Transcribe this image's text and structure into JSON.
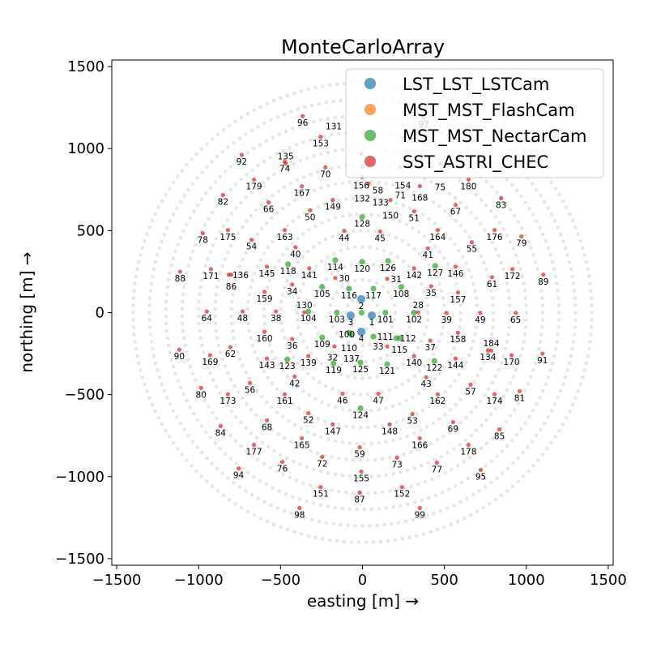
{
  "chart_data": {
    "type": "scatter",
    "title": "MonteCarloArray",
    "xlabel": "easting [m] →",
    "ylabel": "northing [m] →",
    "xlim": [
      -1530,
      1530
    ],
    "ylim": [
      -1540,
      1540
    ],
    "xticks": [
      -1500,
      -1000,
      -500,
      0,
      500,
      1000,
      1500
    ],
    "yticks": [
      -1500,
      -1000,
      -500,
      0,
      500,
      1000,
      1500
    ],
    "grid": false,
    "legend_position": "top-right",
    "series": [
      {
        "name": "LST_LST_LSTCam",
        "color": "#1f77b4",
        "points": [
          [
            "1",
            57,
            -17
          ],
          [
            "2",
            -7,
            82
          ],
          [
            "3",
            -72,
            -17
          ],
          [
            "4",
            -7,
            -117
          ]
        ]
      },
      {
        "name": "MST_MST_FlashCam",
        "color": "#ff7f0e",
        "points": []
      },
      {
        "name": "MST_MST_NectarCam",
        "color": "#2ca02c",
        "points": [
          [
            "100",
            -5,
            0
          ],
          [
            "101",
            140,
            0
          ],
          [
            "102",
            315,
            0
          ],
          [
            "103",
            -156,
            0
          ],
          [
            "104",
            -330,
            7
          ],
          [
            "105",
            -246,
            156
          ],
          [
            "117",
            67,
            146
          ],
          [
            "108",
            236,
            156
          ],
          [
            "116",
            -82,
            146
          ],
          [
            "118",
            -454,
            295
          ],
          [
            "114",
            -166,
            320
          ],
          [
            "128",
            -2,
            583
          ],
          [
            "120",
            -2,
            310
          ],
          [
            "126",
            156,
            315
          ],
          [
            "127",
            444,
            285
          ],
          [
            "109",
            -246,
            -151
          ],
          [
            "110",
            -82,
            -122
          ],
          [
            "137",
            -67,
            -136
          ],
          [
            "111",
            67,
            -146
          ],
          [
            "112",
            206,
            -156
          ],
          [
            "115",
            226,
            -156
          ],
          [
            "119",
            -176,
            -310
          ],
          [
            "125",
            -12,
            -305
          ],
          [
            "121",
            151,
            -315
          ],
          [
            "122",
            439,
            -295
          ],
          [
            "123",
            -459,
            -285
          ],
          [
            "124",
            -12,
            -583
          ]
        ]
      },
      {
        "name": "SST_ASTRI_CHEC",
        "color": "#d62728",
        "points": [
          [
            "96",
            -365,
            1198
          ],
          [
            "153",
            -255,
            1072
          ],
          [
            "92",
            -737,
            962
          ],
          [
            "74",
            -474,
            920
          ],
          [
            "135",
            -469,
            910
          ],
          [
            "70",
            -226,
            886
          ],
          [
            "179",
            -662,
            811
          ],
          [
            "167",
            -370,
            771
          ],
          [
            "82",
            -851,
            717
          ],
          [
            "149",
            -181,
            687
          ],
          [
            "66",
            -573,
            672
          ],
          [
            "50",
            -320,
            623
          ],
          [
            "78",
            -975,
            484
          ],
          [
            "175",
            -821,
            503
          ],
          [
            "163",
            -474,
            503
          ],
          [
            "44",
            -112,
            498
          ],
          [
            "54",
            -677,
            444
          ],
          [
            "40",
            -409,
            399
          ],
          [
            "145",
            -583,
            280
          ],
          [
            "141",
            -325,
            270
          ],
          [
            "88",
            -1113,
            250
          ],
          [
            "171",
            -925,
            265
          ],
          [
            "136",
            -816,
            231
          ],
          [
            "86",
            -801,
            231
          ],
          [
            "34",
            -429,
            171
          ],
          [
            "159",
            -598,
            127
          ],
          [
            "30",
            -166,
            211
          ],
          [
            "131",
            12,
            1099
          ],
          [
            "154",
            246,
            1069
          ],
          [
            "156",
            -7,
            969
          ],
          [
            "132",
            -2,
            890
          ],
          [
            "71",
            231,
            886
          ],
          [
            "75",
            474,
            910
          ],
          [
            "97",
            374,
            1188
          ],
          [
            "58",
            -2,
            826
          ],
          [
            "133",
            37,
            786
          ],
          [
            "168",
            350,
            771
          ],
          [
            "180",
            647,
            811
          ],
          [
            "150",
            171,
            687
          ],
          [
            "83",
            846,
            697
          ],
          [
            "51",
            315,
            617
          ],
          [
            "67",
            568,
            657
          ],
          [
            "45",
            107,
            494
          ],
          [
            "164",
            459,
            503
          ],
          [
            "176",
            806,
            503
          ],
          [
            "79",
            970,
            464
          ],
          [
            "55",
            667,
            429
          ],
          [
            "41",
            399,
            392
          ],
          [
            "142",
            315,
            270
          ],
          [
            "146",
            568,
            280
          ],
          [
            "172",
            915,
            265
          ],
          [
            "89",
            1104,
            231
          ],
          [
            "61",
            791,
            216
          ],
          [
            "31",
            151,
            206
          ],
          [
            "35",
            419,
            161
          ],
          [
            "157",
            583,
            122
          ],
          [
            "130",
            -355,
            2
          ],
          [
            "28",
            340,
            2
          ],
          [
            "39",
            513,
            -2
          ],
          [
            "49",
            719,
            -2
          ],
          [
            "65",
            935,
            -2
          ],
          [
            "64",
            -950,
            7
          ],
          [
            "48",
            -732,
            7
          ],
          [
            "38",
            -528,
            7
          ],
          [
            "160",
            -598,
            -117
          ],
          [
            "36",
            -429,
            -161
          ],
          [
            "32",
            -171,
            -206
          ],
          [
            "33",
            151,
            -206
          ],
          [
            "37",
            414,
            -171
          ],
          [
            "158",
            583,
            -122
          ],
          [
            "90",
            -1118,
            -226
          ],
          [
            "169",
            -930,
            -260
          ],
          [
            "62",
            -806,
            -211
          ],
          [
            "143",
            -583,
            -280
          ],
          [
            "139",
            -330,
            -265
          ],
          [
            "140",
            315,
            -265
          ],
          [
            "134",
            766,
            -231
          ],
          [
            "184",
            786,
            -231
          ],
          [
            "170",
            910,
            -260
          ],
          [
            "91",
            1099,
            -250
          ],
          [
            "144",
            568,
            -280
          ],
          [
            "42",
            -414,
            -390
          ],
          [
            "43",
            389,
            -394
          ],
          [
            "80",
            -985,
            -459
          ],
          [
            "56",
            -687,
            -429
          ],
          [
            "173",
            -821,
            -498
          ],
          [
            "161",
            -474,
            -498
          ],
          [
            "46",
            -122,
            -494
          ],
          [
            "47",
            97,
            -494
          ],
          [
            "162",
            459,
            -498
          ],
          [
            "174",
            806,
            -498
          ],
          [
            "81",
            959,
            -479
          ],
          [
            "57",
            660,
            -439
          ],
          [
            "52",
            -330,
            -613
          ],
          [
            "53",
            305,
            -618
          ],
          [
            "84",
            -866,
            -692
          ],
          [
            "68",
            -583,
            -657
          ],
          [
            "147",
            -181,
            -682
          ],
          [
            "148",
            166,
            -682
          ],
          [
            "69",
            553,
            -667
          ],
          [
            "85",
            836,
            -712
          ],
          [
            "165",
            -370,
            -766
          ],
          [
            "166",
            350,
            -766
          ],
          [
            "177",
            -662,
            -806
          ],
          [
            "178",
            647,
            -806
          ],
          [
            "59",
            -17,
            -821
          ],
          [
            "72",
            -246,
            -880
          ],
          [
            "73",
            211,
            -885
          ],
          [
            "76",
            -489,
            -910
          ],
          [
            "77",
            454,
            -915
          ],
          [
            "94",
            -756,
            -950
          ],
          [
            "95",
            722,
            -959
          ],
          [
            "155",
            -7,
            -969
          ],
          [
            "151",
            -255,
            -1064
          ],
          [
            "152",
            241,
            -1064
          ],
          [
            "87",
            -17,
            -1097
          ],
          [
            "98",
            -384,
            -1191
          ],
          [
            "99",
            350,
            -1191
          ]
        ]
      }
    ]
  }
}
